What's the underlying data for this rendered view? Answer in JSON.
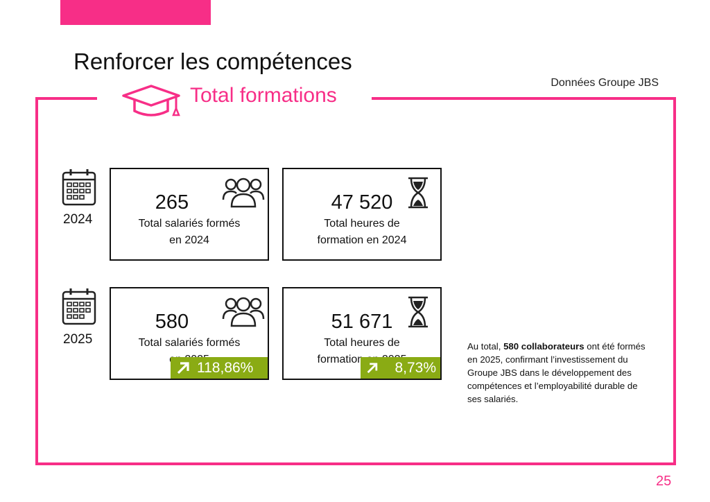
{
  "page": {
    "title": "Renforcer les compétences",
    "source": "Données Groupe JBS",
    "section_title": "Total formations",
    "page_number": "25"
  },
  "colors": {
    "accent": "#f72e87",
    "growth": "#8aab14",
    "text": "#111111"
  },
  "icons": {
    "section": "graduation-cap-icon",
    "year": "calendar-icon",
    "people": "people-group-icon",
    "hours": "hourglass-icon",
    "growth": "arrow-up-right-icon"
  },
  "rows": [
    {
      "year": "2024",
      "employees": {
        "value": "265",
        "label_line1": "Total salariés formés",
        "label_line2": "en 2024"
      },
      "hours": {
        "value": "47 520",
        "label_line1": "Total heures de",
        "label_line2": "formation en 2024"
      }
    },
    {
      "year": "2025",
      "employees": {
        "value": "580",
        "label_line1": "Total salariés formés",
        "label_line2": "en 2025",
        "growth": "118,86%"
      },
      "hours": {
        "value": "51 671",
        "label_line1": "Total heures de",
        "label_line2": "formation en 2025",
        "growth": "8,73%"
      }
    }
  ],
  "note": {
    "prefix": "Au total,",
    "highlight": "580 collaborateurs",
    "suffix": "ont été formés en 2025, confirmant l’investissement du Groupe JBS dans le développement des compétences et l’employabilité durable de ses salariés."
  }
}
